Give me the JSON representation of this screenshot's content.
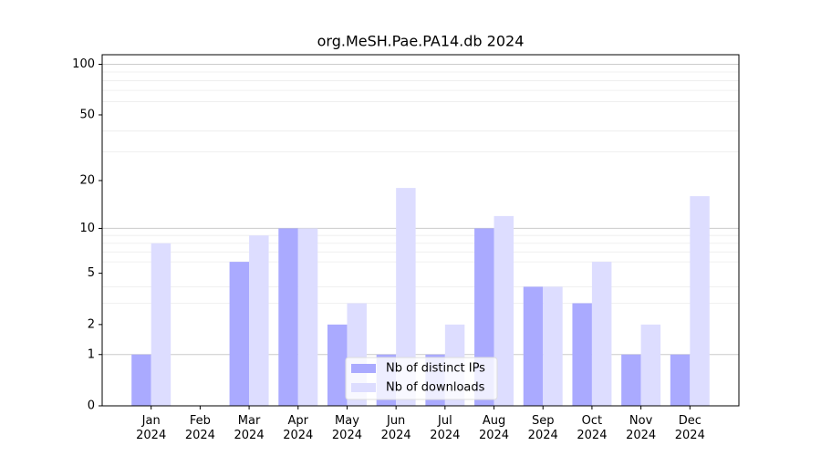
{
  "chart_data": {
    "type": "bar",
    "title": "org.MeSH.Pae.PA14.db 2024",
    "categories": [
      "Jan 2024",
      "Feb 2024",
      "Mar 2024",
      "Apr 2024",
      "May 2024",
      "Jun 2024",
      "Jul 2024",
      "Aug 2024",
      "Sep 2024",
      "Oct 2024",
      "Nov 2024",
      "Dec 2024"
    ],
    "series": [
      {
        "name": "Nb of distinct IPs",
        "color": "#aaaaff",
        "values": [
          1,
          0,
          6,
          10,
          2,
          1,
          1,
          10,
          4,
          3,
          1,
          1
        ]
      },
      {
        "name": "Nb of downloads",
        "color": "#ddddff",
        "values": [
          8,
          0,
          9,
          10,
          3,
          18,
          2,
          12,
          4,
          6,
          2,
          16
        ]
      }
    ],
    "yscale": "log1p",
    "ylim": [
      0,
      114
    ],
    "yticks": [
      0,
      1,
      2,
      5,
      10,
      20,
      50,
      100
    ],
    "minor_grid": [
      3,
      4,
      6,
      7,
      8,
      9,
      30,
      40,
      60,
      70,
      80,
      90
    ],
    "major_grid": [
      1,
      10,
      100
    ],
    "grid": true,
    "legend": "bottom-center"
  }
}
